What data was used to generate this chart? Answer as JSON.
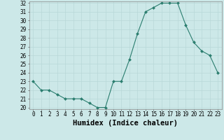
{
  "x": [
    0,
    1,
    2,
    3,
    4,
    5,
    6,
    7,
    8,
    9,
    10,
    11,
    12,
    13,
    14,
    15,
    16,
    17,
    18,
    19,
    20,
    21,
    22,
    23
  ],
  "y": [
    23.0,
    22.0,
    22.0,
    21.5,
    21.0,
    21.0,
    21.0,
    20.5,
    20.0,
    20.0,
    23.0,
    23.0,
    25.5,
    28.5,
    31.0,
    31.5,
    32.0,
    32.0,
    32.0,
    29.5,
    27.5,
    26.5,
    26.0,
    24.0
  ],
  "x_label": "Humidex (Indice chaleur)",
  "ylim": [
    20,
    32
  ],
  "xlim": [
    -0.5,
    23.5
  ],
  "yticks": [
    20,
    21,
    22,
    23,
    24,
    25,
    26,
    27,
    28,
    29,
    30,
    31,
    32
  ],
  "xticks": [
    0,
    1,
    2,
    3,
    4,
    5,
    6,
    7,
    8,
    9,
    10,
    11,
    12,
    13,
    14,
    15,
    16,
    17,
    18,
    19,
    20,
    21,
    22,
    23
  ],
  "line_color": "#2a7d6e",
  "marker_color": "#2a7d6e",
  "bg_color": "#cce8e8",
  "grid_color": "#b8d8d8",
  "tick_label_fontsize": 5.5,
  "xlabel_fontsize": 7.5
}
